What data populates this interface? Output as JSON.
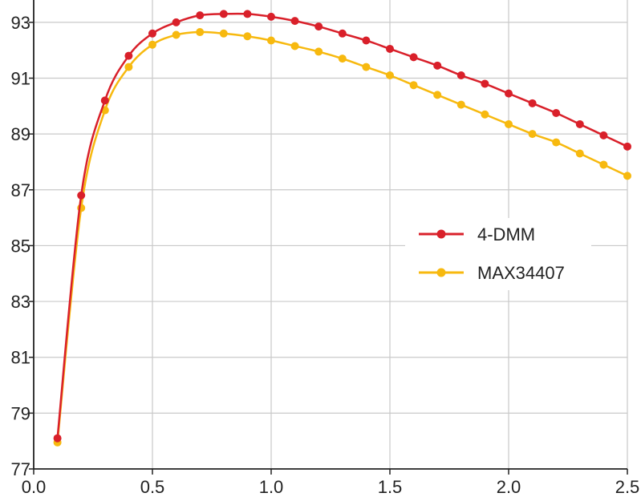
{
  "chart_data": {
    "type": "line",
    "title": "",
    "xlabel": "",
    "ylabel": "",
    "xlim": [
      0.0,
      2.5
    ],
    "ylim": [
      77,
      93.8
    ],
    "x_ticks": [
      "0.0",
      "0.5",
      "1.0",
      "1.5",
      "2.0",
      "2.5"
    ],
    "y_ticks": [
      "77",
      "79",
      "81",
      "83",
      "85",
      "87",
      "89",
      "91",
      "93"
    ],
    "grid": true,
    "legend_position": "center-right",
    "x": [
      0.1,
      0.2,
      0.3,
      0.4,
      0.5,
      0.6,
      0.7,
      0.8,
      0.9,
      1.0,
      1.1,
      1.2,
      1.3,
      1.4,
      1.5,
      1.6,
      1.7,
      1.8,
      1.9,
      2.0,
      2.1,
      2.2,
      2.3,
      2.4,
      2.5
    ],
    "series": [
      {
        "name": "4-DMM",
        "color": "#d9202a",
        "values": [
          78.1,
          86.8,
          90.2,
          91.8,
          92.6,
          93.0,
          93.25,
          93.3,
          93.3,
          93.2,
          93.05,
          92.85,
          92.6,
          92.35,
          92.05,
          91.75,
          91.45,
          91.1,
          90.8,
          90.45,
          90.1,
          89.75,
          89.35,
          88.95,
          88.55
        ]
      },
      {
        "name": "MAX34407",
        "color": "#f7b90f",
        "values": [
          77.95,
          86.35,
          89.85,
          91.4,
          92.2,
          92.55,
          92.65,
          92.6,
          92.5,
          92.35,
          92.15,
          91.95,
          91.7,
          91.4,
          91.1,
          90.75,
          90.4,
          90.05,
          89.7,
          89.35,
          89.0,
          88.7,
          88.3,
          87.9,
          87.5
        ]
      }
    ]
  }
}
